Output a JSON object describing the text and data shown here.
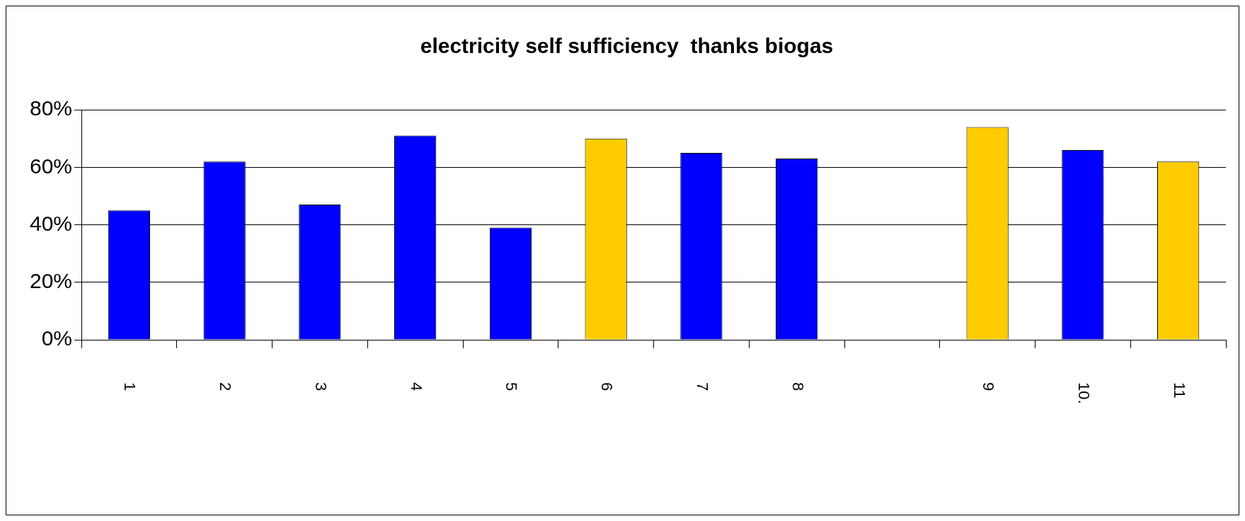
{
  "chart_data": {
    "type": "bar",
    "title": "electricity self sufficiency  thanks biogas",
    "categories": [
      "1",
      "2",
      "3",
      "4",
      "5",
      "6",
      "7",
      "8",
      null,
      "9",
      "10.",
      "11"
    ],
    "values": [
      45,
      62,
      47,
      71,
      39,
      70,
      65,
      63,
      null,
      74,
      66,
      62
    ],
    "colors": [
      "#0000ff",
      "#0000ff",
      "#0000ff",
      "#0000ff",
      "#0000ff",
      "#ffcc00",
      "#0000ff",
      "#0000ff",
      null,
      "#ffcc00",
      "#0000ff",
      "#ffcc00"
    ],
    "ylim": [
      0,
      80
    ],
    "yticks": [
      {
        "value": 0,
        "label": "0%"
      },
      {
        "value": 20,
        "label": "20%"
      },
      {
        "value": 40,
        "label": "40%"
      },
      {
        "value": 60,
        "label": "60%"
      },
      {
        "value": 80,
        "label": "80%"
      }
    ],
    "grid": "y"
  }
}
